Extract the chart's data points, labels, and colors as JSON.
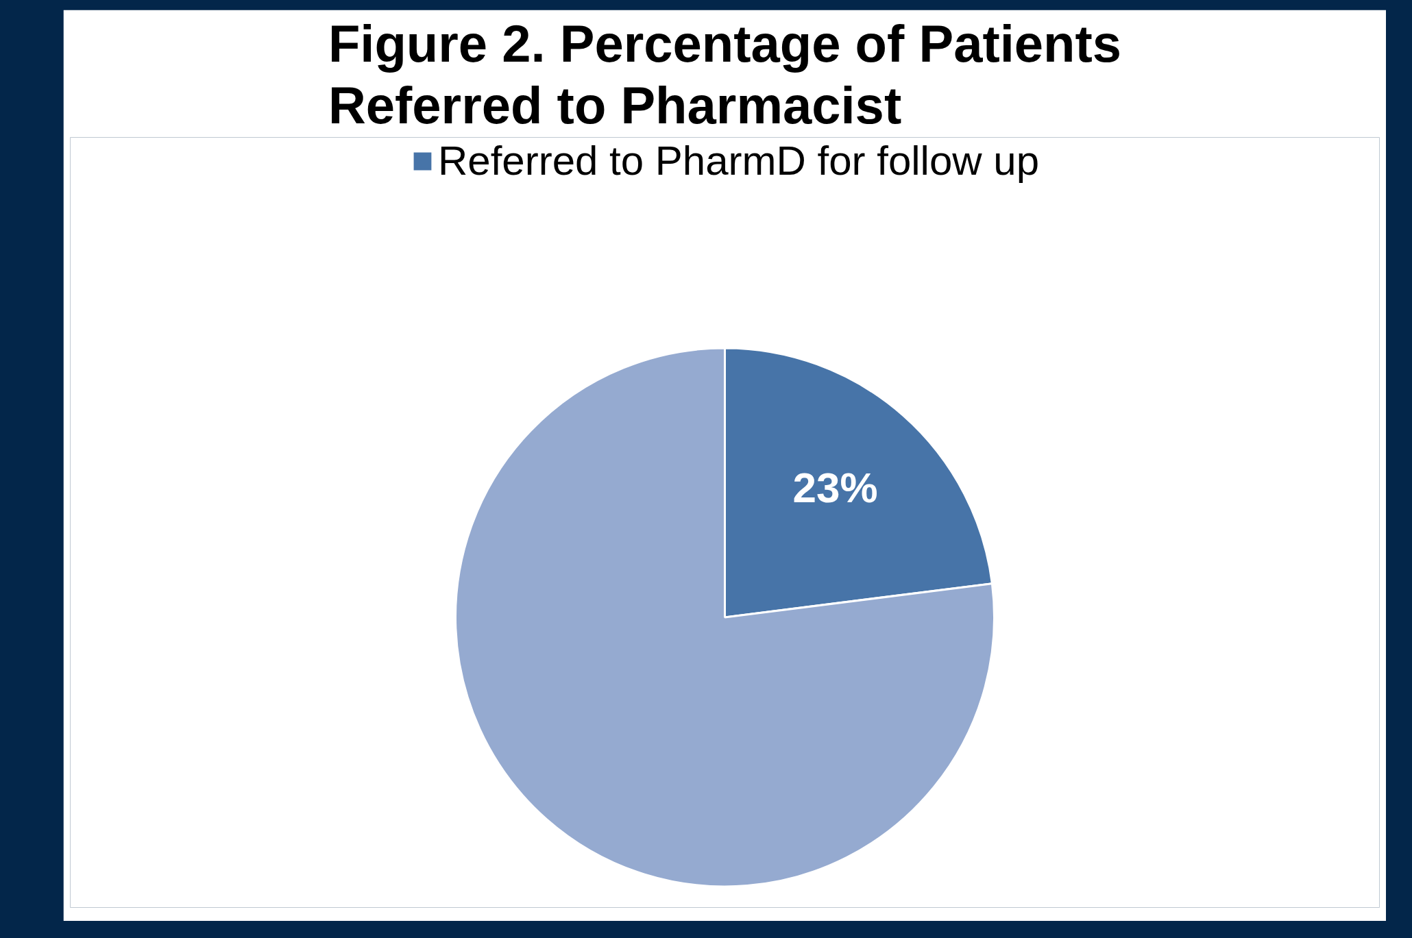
{
  "chart_data": {
    "type": "pie",
    "title": "Figure 2. Percentage of Patients Referred to Pharmacist",
    "categories": [
      "Referred to PharmD for follow up",
      null
    ],
    "values": [
      23,
      77
    ],
    "colors": [
      "#4774a8",
      "#95aad0"
    ],
    "value_labels": [
      "23%",
      null
    ],
    "legend": "top"
  }
}
